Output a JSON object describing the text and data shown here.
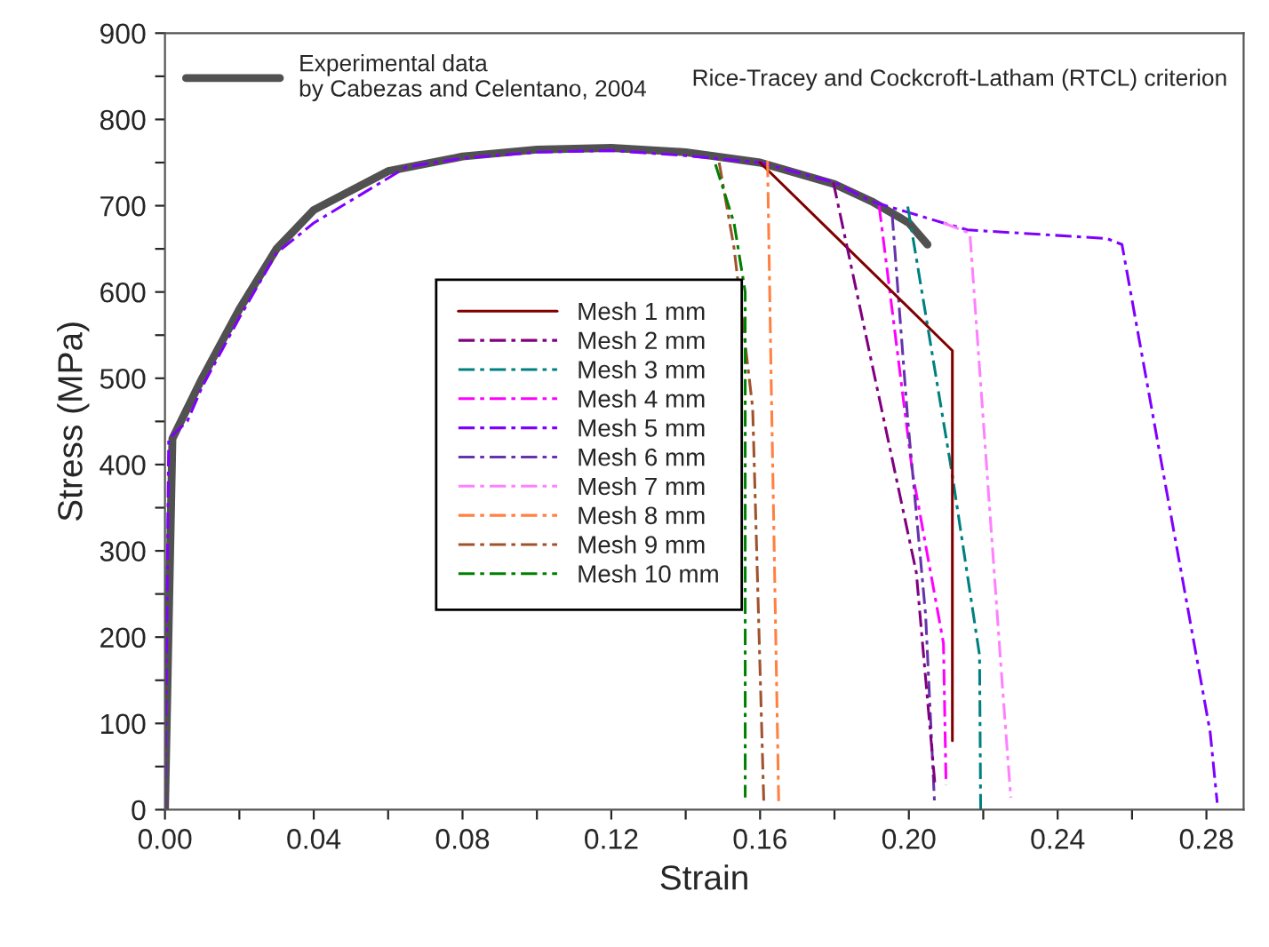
{
  "chart_data": {
    "type": "line",
    "xlabel": "Strain",
    "ylabel": "Stress (MPa)",
    "annotations": [
      "Rice-Tracey and Cockcroft-Latham (RTCL) criterion"
    ],
    "xlim": [
      0,
      0.29
    ],
    "ylim": [
      0,
      900
    ],
    "xticks": [
      {
        "value": 0,
        "label": "0.00"
      },
      {
        "value": 0.02,
        "label": null
      },
      {
        "value": 0.04,
        "label": "0.04"
      },
      {
        "value": 0.06,
        "label": null
      },
      {
        "value": 0.08,
        "label": "0.08"
      },
      {
        "value": 0.1,
        "label": null
      },
      {
        "value": 0.12,
        "label": "0.12"
      },
      {
        "value": 0.14,
        "label": null
      },
      {
        "value": 0.16,
        "label": "0.16"
      },
      {
        "value": 0.18,
        "label": null
      },
      {
        "value": 0.2,
        "label": "0.20"
      },
      {
        "value": 0.22,
        "label": null
      },
      {
        "value": 0.24,
        "label": "0.24"
      },
      {
        "value": 0.26,
        "label": null
      },
      {
        "value": 0.28,
        "label": "0.28"
      }
    ],
    "yticks": [
      0,
      {
        "value": 50,
        "label": null
      },
      100,
      {
        "value": 150,
        "label": null
      },
      200,
      {
        "value": 250,
        "label": null
      },
      300,
      {
        "value": 350,
        "label": null
      },
      400,
      {
        "value": 450,
        "label": null
      },
      500,
      {
        "value": 550,
        "label": null
      },
      600,
      {
        "value": 650,
        "label": null
      },
      700,
      {
        "value": 750,
        "label": null
      },
      800,
      {
        "value": 850,
        "label": null
      },
      900
    ],
    "grid": false,
    "legend": "center left",
    "marker": "none",
    "series": [
      {
        "name": "Experimental data\nby Cabezas and Celentano, 2004",
        "color": "#333333",
        "line_style": "solid",
        "x": [
          0,
          0.002,
          0.01,
          0.02,
          0.03,
          0.04,
          0.06,
          0.08,
          0.1,
          0.12,
          0.14,
          0.16,
          0.18,
          0.19,
          0.2,
          0.205
        ],
        "values": [
          0,
          430,
          500,
          580,
          650,
          695,
          740,
          757,
          765,
          767,
          762,
          750,
          725,
          705,
          680,
          655
        ]
      },
      {
        "name": "Mesh 1 mm",
        "color": "#800000",
        "line_style": "solid",
        "x": [
          0.16,
          0.2117,
          0.2117
        ],
        "values": [
          750,
          532,
          80
        ]
      },
      {
        "name": "Mesh 2 mm",
        "color": "#800080",
        "line_style": "dashed",
        "x": [
          0.1797,
          0.202,
          0.207
        ],
        "values": [
          727,
          275,
          30
        ]
      },
      {
        "name": "Mesh 3 mm",
        "color": "#008080",
        "line_style": "dashed",
        "x": [
          0.1997,
          0.2116,
          0.219,
          0.2193
        ],
        "values": [
          699,
          390,
          179,
          0
        ]
      },
      {
        "name": "Mesh 4 mm",
        "color": "#ff00ff",
        "line_style": "dashed",
        "x": [
          0.192,
          0.201,
          0.2093,
          0.21
        ],
        "values": [
          700,
          390,
          193,
          29
        ]
      },
      {
        "name": "Mesh 5 mm",
        "color": "#8000ff",
        "line_style": "dashed",
        "x": [
          0,
          0.001,
          0.006,
          0.01,
          0.02,
          0.03,
          0.04,
          0.065,
          0.08,
          0.1,
          0.12,
          0.14,
          0.16,
          0.18,
          0.19,
          0.2093,
          0.2157,
          0.2532,
          0.2573,
          0.281,
          0.2829
        ],
        "values": [
          0,
          430,
          450,
          490,
          570,
          645,
          680,
          745,
          755,
          762,
          764,
          758,
          750,
          727,
          705,
          680,
          672,
          662,
          655,
          90,
          8
        ]
      },
      {
        "name": "Mesh 6 mm",
        "color": "#6633aa",
        "line_style": "dashed",
        "x": [
          0.1955,
          0.1997,
          0.2045,
          0.2069
        ],
        "values": [
          690,
          452,
          226,
          8
        ]
      },
      {
        "name": "Mesh 7 mm",
        "color": "#ff80ff",
        "line_style": "dashed",
        "x": [
          0.2093,
          0.2164,
          0.225,
          0.2274
        ],
        "values": [
          680,
          668,
          152,
          14
        ]
      },
      {
        "name": "Mesh 8 mm",
        "color": "#ff8040",
        "line_style": "dashed",
        "x": [
          0.162,
          0.163,
          0.165
        ],
        "values": [
          752,
          493,
          10
        ]
      },
      {
        "name": "Mesh 9 mm",
        "color": "#a0522d",
        "line_style": "dashed",
        "x": [
          0.149,
          0.153,
          0.158,
          0.161
        ],
        "values": [
          750,
          651,
          466,
          8
        ]
      },
      {
        "name": "Mesh 10 mm",
        "color": "#008000",
        "line_style": "dashed",
        "x": [
          0.148,
          0.153,
          0.156,
          0.156
        ],
        "values": [
          748,
          680,
          600,
          14
        ]
      }
    ]
  }
}
